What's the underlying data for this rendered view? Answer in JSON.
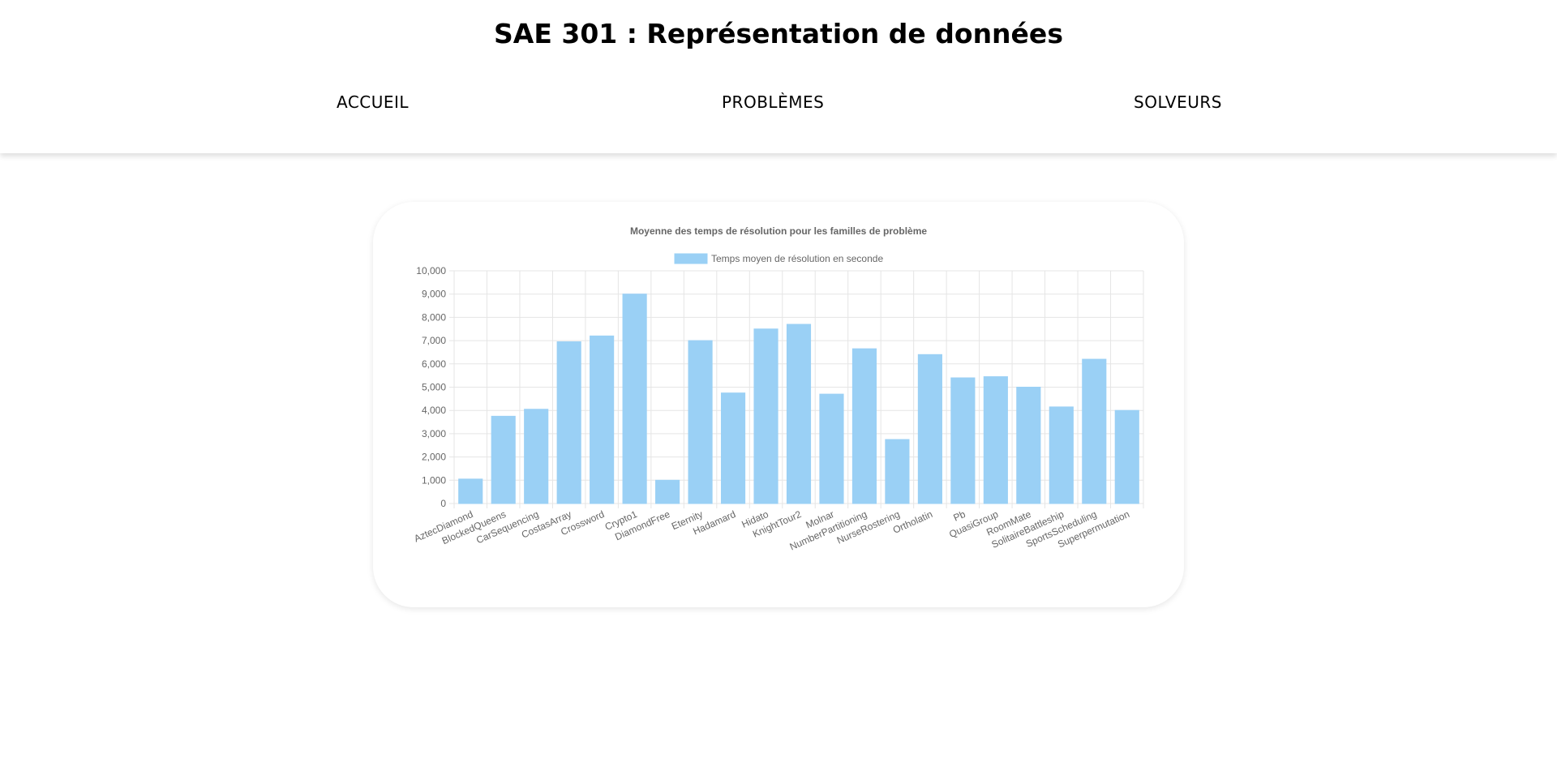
{
  "header": {
    "title": "SAE 301 : Représentation de données",
    "nav": [
      {
        "label": "ACCUEIL"
      },
      {
        "label": "PROBLÈMES"
      },
      {
        "label": "SOLVEURS"
      }
    ]
  },
  "chart_data": {
    "type": "bar",
    "title": "Moyenne des temps de résolution pour les familles de problème",
    "legend_position": "top",
    "grid": true,
    "ylim": [
      0,
      10000
    ],
    "yticks": [
      "0",
      "1,000",
      "2,000",
      "3,000",
      "4,000",
      "5,000",
      "6,000",
      "7,000",
      "8,000",
      "9,000",
      "10,000"
    ],
    "categories": [
      "AztecDiamond",
      "BlockedQueens",
      "CarSequencing",
      "CostasArray",
      "Crossword",
      "Crypto1",
      "DiamondFree",
      "Eternity",
      "Hadamard",
      "Hidato",
      "KnightTour2",
      "Molnar",
      "NumberPartitioning",
      "NurseRostering",
      "Ortholatin",
      "Pb",
      "QuasiGroup",
      "RoomMate",
      "SolitaireBattleship",
      "SportsScheduling",
      "Superpermutation"
    ],
    "series": [
      {
        "name": "Temps moyen de résolution en seconde",
        "color": "#9ad0f5",
        "values": [
          1050,
          3750,
          4050,
          6950,
          7200,
          9000,
          1000,
          7000,
          4750,
          7500,
          7700,
          4700,
          6650,
          2750,
          6400,
          5400,
          5450,
          5000,
          4150,
          6200,
          4000
        ]
      }
    ]
  }
}
